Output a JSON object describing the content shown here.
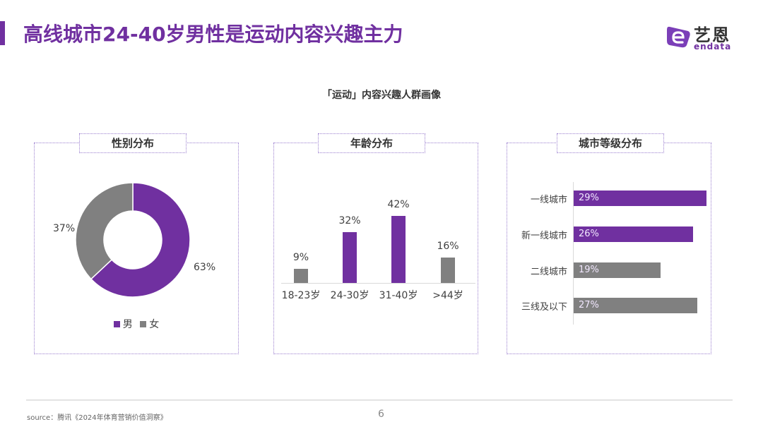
{
  "header": {
    "title": "高线城市24-40岁男性是运动内容兴趣主力",
    "logo_cn": "艺恩",
    "logo_en": "endata"
  },
  "subtitle": "「运动」内容兴趣人群画像",
  "colors": {
    "accent": "#7030a0",
    "gray": "#808080"
  },
  "panels": {
    "gender": {
      "title": "性别分布"
    },
    "age": {
      "title": "年龄分布"
    },
    "city": {
      "title": "城市等级分布"
    }
  },
  "chart_data": [
    {
      "type": "pie",
      "title": "性别分布",
      "variant": "donut",
      "categories": [
        "男",
        "女"
      ],
      "values": [
        63,
        37
      ],
      "labels": [
        "63%",
        "37%"
      ],
      "colors": [
        "#7030a0",
        "#808080"
      ],
      "legend": [
        "男",
        "女"
      ],
      "legend_position": "bottom"
    },
    {
      "type": "bar",
      "title": "年龄分布",
      "orientation": "vertical",
      "categories": [
        "18-23岁",
        "24-30岁",
        "31-40岁",
        ">44岁"
      ],
      "values": [
        9,
        32,
        42,
        16
      ],
      "labels": [
        "9%",
        "32%",
        "42%",
        "16%"
      ],
      "colors": [
        "#808080",
        "#7030a0",
        "#7030a0",
        "#808080"
      ],
      "grid": false
    },
    {
      "type": "bar",
      "title": "城市等级分布",
      "orientation": "horizontal",
      "categories": [
        "一线城市",
        "新一线城市",
        "二线城市",
        "三线及以下"
      ],
      "values": [
        29,
        26,
        19,
        27
      ],
      "labels": [
        "29%",
        "26%",
        "19%",
        "27%"
      ],
      "colors": [
        "#7030a0",
        "#7030a0",
        "#808080",
        "#808080"
      ],
      "grid": false
    }
  ],
  "footer": {
    "source": "source：腾讯《2024年体育营销价值洞察》",
    "page_number": "6"
  }
}
